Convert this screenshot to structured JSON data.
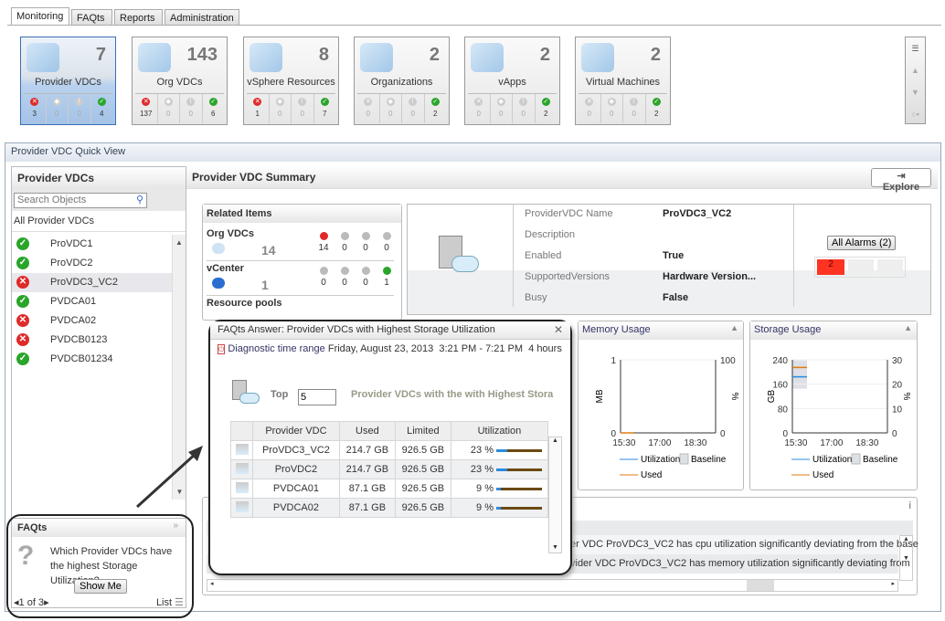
{
  "tabs": [
    "Monitoring",
    "FAQts",
    "Reports",
    "Administration"
  ],
  "tiles": [
    {
      "label": "Provider VDCs",
      "count": "7",
      "counts": [
        "3",
        "0",
        "0",
        "4"
      ],
      "selected": true
    },
    {
      "label": "Org VDCs",
      "count": "143",
      "counts": [
        "137",
        "0",
        "0",
        "6"
      ]
    },
    {
      "label": "vSphere Resources",
      "count": "8",
      "counts": [
        "1",
        "0",
        "0",
        "7"
      ]
    },
    {
      "label": "Organizations",
      "count": "2",
      "counts": [
        "0",
        "0",
        "0",
        "2"
      ]
    },
    {
      "label": "vApps",
      "count": "2",
      "counts": [
        "0",
        "0",
        "0",
        "2"
      ]
    },
    {
      "label": "Virtual Machines",
      "count": "2",
      "counts": [
        "0",
        "0",
        "0",
        "2"
      ]
    }
  ],
  "quickview": {
    "title": "Provider VDC Quick View"
  },
  "left": {
    "title": "Provider VDCs",
    "search_placeholder": "Search Objects",
    "all_label": "All Provider VDCs",
    "items": [
      {
        "name": "ProVDC1",
        "status": "ok"
      },
      {
        "name": "ProVDC2",
        "status": "ok"
      },
      {
        "name": "ProVDC3_VC2",
        "status": "error",
        "selected": true
      },
      {
        "name": "PVDCA01",
        "status": "ok"
      },
      {
        "name": "PVDCA02",
        "status": "error"
      },
      {
        "name": "PVDCB0123",
        "status": "error"
      },
      {
        "name": "PVDCB01234",
        "status": "ok"
      }
    ]
  },
  "faqts": {
    "title": "FAQts",
    "question": "Which Provider VDCs have the highest Storage Utilization?",
    "button": "Show Me",
    "pager": "1 of 3",
    "list": "List"
  },
  "summary": {
    "title": "Provider VDC Summary",
    "explore": "Explore"
  },
  "related": {
    "title": "Related Items",
    "items": [
      {
        "label": "Org VDCs",
        "count": "14",
        "counts": [
          "14",
          "0",
          "0",
          "0"
        ]
      },
      {
        "label": "vCenter",
        "count": "1",
        "counts": [
          "0",
          "0",
          "0",
          "1"
        ]
      },
      {
        "label": "Resource pools"
      }
    ]
  },
  "info": {
    "fields": [
      {
        "label": "ProviderVDC Name",
        "value": "ProVDC3_VC2"
      },
      {
        "label": "Description",
        "value": ""
      },
      {
        "label": "Enabled",
        "value": "True"
      },
      {
        "label": "SupportedVersions",
        "value": "Hardware Version..."
      },
      {
        "label": "Busy",
        "value": "False"
      }
    ],
    "alarms_button": "All Alarms (2)",
    "alarm_counts": [
      "2",
      "",
      ""
    ]
  },
  "charts": {
    "memory": {
      "title": "Memory Usage",
      "ylabel": "MB",
      "y2label": "%",
      "yticks": [
        "0",
        "1"
      ],
      "y2ticks": [
        "0",
        "100"
      ],
      "xticks": [
        "15:30",
        "17:00",
        "18:30"
      ],
      "ylim": [
        0,
        1
      ],
      "y2lim": [
        0,
        100
      ],
      "xlim": [
        "15:21",
        "19:21"
      ],
      "used": [
        [
          "15:21",
          0
        ],
        [
          "15:55",
          0
        ]
      ],
      "legend": [
        "Utilization",
        "Baseline",
        "Used"
      ]
    },
    "storage": {
      "title": "Storage Usage",
      "ylabel": "GB",
      "y2label": "%",
      "yticks": [
        "0",
        "80",
        "160",
        "240"
      ],
      "y2ticks": [
        "0",
        "10",
        "20",
        "30"
      ],
      "xticks": [
        "15:30",
        "17:00",
        "18:30"
      ],
      "ylim": [
        0,
        240
      ],
      "y2lim": [
        0,
        30
      ],
      "xlim": [
        "15:21",
        "19:21"
      ],
      "baseline": [
        145,
        238
      ],
      "baseline_x": [
        "15:21",
        "15:58"
      ],
      "used": 214.7,
      "utilization": 23,
      "series_x": [
        "15:21",
        "15:58"
      ],
      "legend": [
        "Utilization",
        "Baseline",
        "Used"
      ]
    }
  },
  "alarms": {
    "rows": [
      "er VDC ProVDC3_VC2 has cpu utilization significantly deviating from the base",
      "vider VDC ProVDC3_VC2 has memory utilization significantly deviating from"
    ]
  },
  "popup": {
    "title": "FAQts Answer: Provider VDCs with Highest Storage Utilization",
    "range_label": "Diagnostic time range",
    "range_value": "Friday, August 23, 2013  3:21 PM - 7:21 PM  4 hours",
    "top_label": "Top",
    "top_value": "5",
    "heading": "Provider VDCs with the with Highest Stora",
    "columns": [
      "Provider VDC",
      "Used",
      "Limited",
      "Utilization"
    ],
    "rows": [
      {
        "name": "ProVDC3_VC2",
        "used": "214.7 GB",
        "limited": "926.5 GB",
        "util": "23 %",
        "pct": 23
      },
      {
        "name": "ProVDC2",
        "used": "214.7 GB",
        "limited": "926.5 GB",
        "util": "23 %",
        "pct": 23
      },
      {
        "name": "PVDCA01",
        "used": "87.1 GB",
        "limited": "926.5 GB",
        "util": "9 %",
        "pct": 9
      },
      {
        "name": "PVDCA02",
        "used": "87.1 GB",
        "limited": "926.5 GB",
        "util": "9 %",
        "pct": 9
      }
    ]
  },
  "colors": {
    "error": "#e02a2a",
    "ok": "#2aa52a",
    "selected": "#a5c3e6",
    "utilization": "#2b8ae0",
    "used": "#e07a10",
    "baseline": "#dde0e4"
  }
}
